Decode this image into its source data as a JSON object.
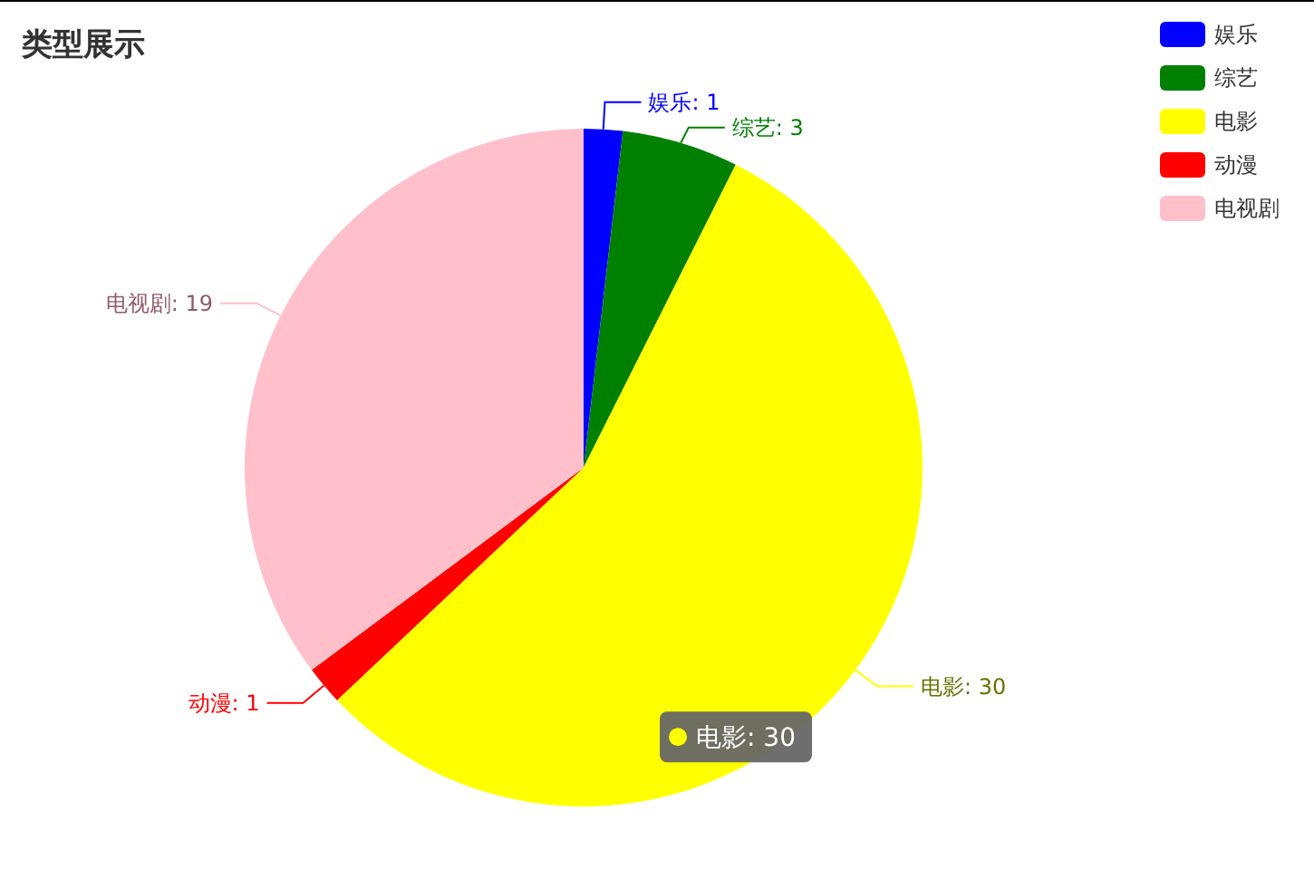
{
  "chart_data": {
    "type": "pie",
    "title": "类型展示",
    "categories": [
      "娱乐",
      "综艺",
      "电影",
      "动漫",
      "电视剧"
    ],
    "values": [
      1,
      3,
      30,
      1,
      19
    ],
    "colors": [
      "#0000ff",
      "#008000",
      "#ffff00",
      "#ff0000",
      "#ffc0cb"
    ],
    "value_labels": [
      "娱乐: 1",
      "综艺: 3",
      "电影: 30",
      "动漫: 1",
      "电视剧: 19"
    ],
    "legend": "top right",
    "annotations": [
      "电影: 30"
    ]
  }
}
